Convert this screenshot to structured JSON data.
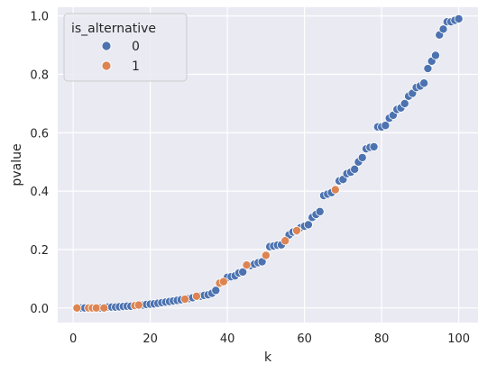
{
  "chart_data": {
    "type": "scatter",
    "title": "",
    "xlabel": "k",
    "ylabel": "pvalue",
    "xlim": [
      -4,
      105
    ],
    "ylim": [
      -0.05,
      1.03
    ],
    "xticks": [
      0,
      20,
      40,
      60,
      80,
      100
    ],
    "yticks": [
      0.0,
      0.2,
      0.4,
      0.6,
      0.8,
      1.0
    ],
    "xtick_labels": [
      "0",
      "20",
      "40",
      "60",
      "80",
      "100"
    ],
    "ytick_labels": [
      "0.0",
      "0.2",
      "0.4",
      "0.6",
      "0.8",
      "1.0"
    ],
    "grid": true,
    "legend_position": "top-left",
    "legend_title": "is_alternative",
    "series": [
      {
        "name": "0",
        "color": "#4c72b0",
        "x": [
          2,
          3,
          7,
          9,
          10,
          11,
          12,
          13,
          14,
          15,
          18,
          19,
          20,
          21,
          22,
          23,
          24,
          25,
          26,
          27,
          28,
          30,
          31,
          33,
          34,
          35,
          36,
          37,
          40,
          41,
          42,
          43,
          44,
          46,
          47,
          48,
          49,
          51,
          52,
          53,
          54,
          56,
          57,
          58,
          59,
          60,
          61,
          62,
          63,
          64,
          65,
          66,
          67,
          69,
          70,
          71,
          72,
          73,
          74,
          75,
          76,
          77,
          78,
          79,
          80,
          81,
          82,
          83,
          84,
          85,
          86,
          87,
          88,
          89,
          90,
          91,
          92,
          93,
          94,
          95,
          96,
          97,
          98,
          99,
          100
        ],
        "y": [
          0.0,
          0.0,
          0.0,
          0.003,
          0.003,
          0.003,
          0.004,
          0.005,
          0.006,
          0.006,
          0.01,
          0.012,
          0.013,
          0.014,
          0.016,
          0.018,
          0.02,
          0.022,
          0.024,
          0.026,
          0.028,
          0.032,
          0.035,
          0.04,
          0.043,
          0.045,
          0.05,
          0.06,
          0.105,
          0.107,
          0.11,
          0.12,
          0.123,
          0.145,
          0.15,
          0.155,
          0.158,
          0.21,
          0.212,
          0.215,
          0.216,
          0.25,
          0.26,
          0.262,
          0.275,
          0.28,
          0.285,
          0.31,
          0.32,
          0.33,
          0.385,
          0.39,
          0.395,
          0.435,
          0.44,
          0.46,
          0.465,
          0.475,
          0.5,
          0.515,
          0.545,
          0.55,
          0.552,
          0.62,
          0.62,
          0.625,
          0.65,
          0.66,
          0.68,
          0.685,
          0.7,
          0.725,
          0.735,
          0.755,
          0.76,
          0.77,
          0.82,
          0.845,
          0.865,
          0.935,
          0.955,
          0.98,
          0.98,
          0.985,
          0.99
        ]
      },
      {
        "name": "1",
        "color": "#dd8452",
        "x": [
          1,
          4,
          5,
          6,
          8,
          16,
          17,
          29,
          32,
          38,
          39,
          45,
          50,
          55,
          58,
          68
        ],
        "y": [
          0.0,
          0.0,
          0.0,
          0.0,
          0.0,
          0.008,
          0.01,
          0.03,
          0.04,
          0.085,
          0.09,
          0.147,
          0.18,
          0.23,
          0.265,
          0.405
        ]
      }
    ]
  }
}
